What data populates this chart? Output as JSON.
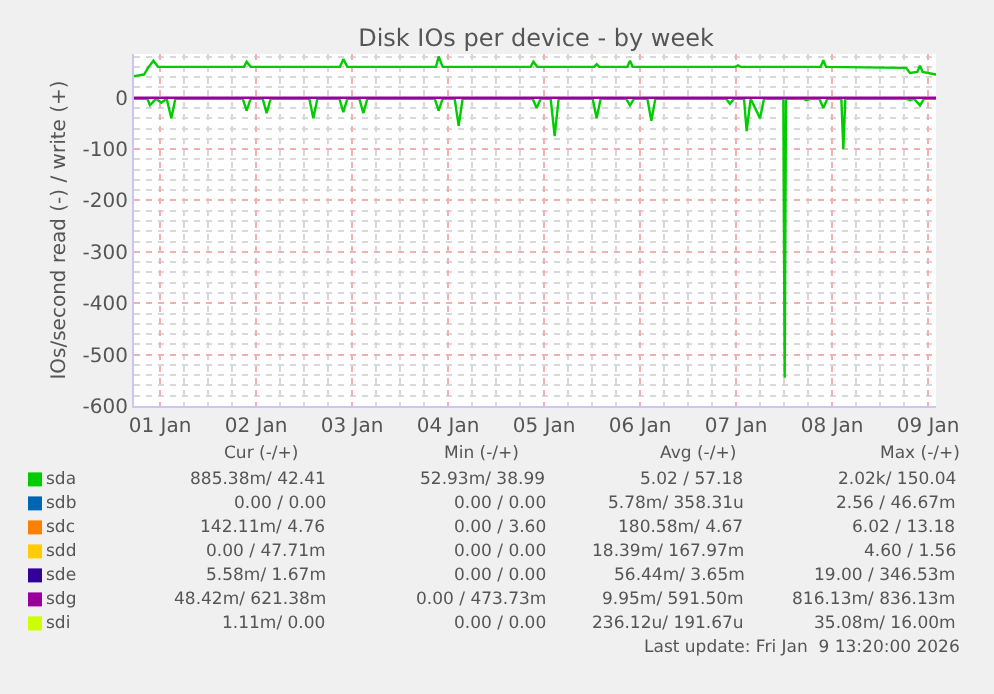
{
  "chart_data": {
    "type": "line",
    "title": "Disk IOs per device - by week",
    "ylabel": "IOs/second read (-) / write (+)",
    "xlim": [
      "2026-01-01T05:30",
      "2026-01-09T14:00"
    ],
    "xticks": [
      {
        "value": "2026-01-01T12:00",
        "label": "01 Jan"
      },
      {
        "value": "2026-01-02T12:00",
        "label": "02 Jan"
      },
      {
        "value": "2026-01-03T12:00",
        "label": "03 Jan"
      },
      {
        "value": "2026-01-04T12:00",
        "label": "04 Jan"
      },
      {
        "value": "2026-01-05T12:00",
        "label": "05 Jan"
      },
      {
        "value": "2026-01-06T12:00",
        "label": "06 Jan"
      },
      {
        "value": "2026-01-07T12:00",
        "label": "07 Jan"
      },
      {
        "value": "2026-01-08T12:00",
        "label": "08 Jan"
      },
      {
        "value": "2026-01-09T12:00",
        "label": "09 Jan"
      }
    ],
    "ylim": [
      -600,
      85
    ],
    "yticks": [
      0,
      -100,
      -200,
      -300,
      -400,
      -500,
      -600
    ],
    "grid": true,
    "legend": "bottom left",
    "marker": "none",
    "line_style": "solid",
    "series": [
      {
        "name": "sda",
        "color": "#00cc00",
        "x": [
          "2026-01-01T05:30",
          "2026-01-01T08:00",
          "2026-01-01T09:00",
          "2026-01-01T10:20",
          "2026-01-01T11:30",
          "2026-01-02T09:00",
          "2026-01-02T09:40",
          "2026-01-02T10:40",
          "2026-01-03T09:00",
          "2026-01-03T09:50",
          "2026-01-03T10:50",
          "2026-01-04T09:00",
          "2026-01-04T09:40",
          "2026-01-04T10:40",
          "2026-01-05T08:40",
          "2026-01-05T09:20",
          "2026-01-05T10:20",
          "2026-01-06T00:30",
          "2026-01-06T01:10",
          "2026-01-06T01:50",
          "2026-01-06T08:50",
          "2026-01-06T09:30",
          "2026-01-06T10:10",
          "2026-01-07T11:50",
          "2026-01-07T12:30",
          "2026-01-07T13:10",
          "2026-01-08T09:10",
          "2026-01-08T09:50",
          "2026-01-08T10:30",
          "2026-01-09T06:30",
          "2026-01-09T07:30",
          "2026-01-09T09:20",
          "2026-01-09T10:00",
          "2026-01-09T10:40",
          "2026-01-09T14:00"
        ],
        "values": [
          42,
          45,
          58,
          72,
          60,
          60,
          70,
          60,
          60,
          75,
          60,
          60,
          80,
          60,
          60,
          70,
          60,
          60,
          65,
          60,
          60,
          72,
          60,
          60,
          63,
          60,
          60,
          73,
          60,
          58,
          48,
          50,
          62,
          50,
          45
        ]
      },
      {
        "color": "#00cc00",
        "x": [
          "2026-01-01T05:30",
          "2026-01-01T08:50",
          "2026-01-01T09:30",
          "2026-01-01T11:00",
          "2026-01-01T12:20",
          "2026-01-01T13:40",
          "2026-01-01T14:50",
          "2026-01-01T15:50",
          "2026-01-02T08:40",
          "2026-01-02T09:40",
          "2026-01-02T10:40",
          "2026-01-02T13:40",
          "2026-01-02T14:40",
          "2026-01-02T15:40",
          "2026-01-03T01:20",
          "2026-01-03T02:20",
          "2026-01-03T03:20",
          "2026-01-03T08:50",
          "2026-01-03T09:50",
          "2026-01-03T10:50",
          "2026-01-03T13:50",
          "2026-01-03T14:50",
          "2026-01-03T15:50",
          "2026-01-04T08:40",
          "2026-01-04T09:40",
          "2026-01-04T10:40",
          "2026-01-04T13:40",
          "2026-01-04T14:40",
          "2026-01-04T15:40",
          "2026-01-05T09:10",
          "2026-01-05T10:10",
          "2026-01-05T11:10",
          "2026-01-05T13:40",
          "2026-01-05T14:40",
          "2026-01-05T15:40",
          "2026-01-06T00:10",
          "2026-01-06T01:10",
          "2026-01-06T02:10",
          "2026-01-06T08:30",
          "2026-01-06T09:30",
          "2026-01-06T10:30",
          "2026-01-06T13:50",
          "2026-01-06T14:50",
          "2026-01-06T15:50",
          "2026-01-07T09:30",
          "2026-01-07T10:30",
          "2026-01-07T11:30",
          "2026-01-07T14:00",
          "2026-01-07T14:40",
          "2026-01-07T15:40",
          "2026-01-07T18:00",
          "2026-01-07T19:00",
          "2026-01-07T23:50",
          "2026-01-08T00:10",
          "2026-01-08T00:30",
          "2026-01-08T04:40",
          "2026-01-08T05:40",
          "2026-01-08T06:40",
          "2026-01-08T08:50",
          "2026-01-08T09:50",
          "2026-01-08T10:50",
          "2026-01-08T14:20",
          "2026-01-08T14:50",
          "2026-01-08T15:20",
          "2026-01-09T06:30",
          "2026-01-09T07:30",
          "2026-01-09T08:30",
          "2026-01-09T10:00",
          "2026-01-09T11:00",
          "2026-01-09T14:00"
        ],
        "values": [
          -2,
          -2,
          -15,
          -2,
          -10,
          -2,
          -40,
          -2,
          -2,
          -25,
          -2,
          -2,
          -30,
          -2,
          -2,
          -40,
          -2,
          -2,
          -28,
          -2,
          -2,
          -30,
          -2,
          -2,
          -25,
          -2,
          -2,
          -55,
          -2,
          -2,
          -20,
          -2,
          -2,
          -75,
          -2,
          -2,
          -40,
          -2,
          -2,
          -15,
          -2,
          -2,
          -45,
          -2,
          -2,
          -12,
          -2,
          -2,
          -65,
          -2,
          -40,
          -2,
          -2,
          -545,
          -2,
          -2,
          -5,
          -2,
          -2,
          -20,
          -2,
          -2,
          -100,
          -2,
          -2,
          -5,
          -2,
          -15,
          -2,
          -2
        ]
      },
      {
        "name": "sdb",
        "color": "#0066b3"
      },
      {
        "name": "sdc",
        "color": "#ff8000"
      },
      {
        "name": "sdd",
        "color": "#ffcc00"
      },
      {
        "name": "sde",
        "color": "#330099"
      },
      {
        "name": "sdg",
        "color": "#990099",
        "x": [
          "2026-01-01T05:30",
          "2026-01-09T14:00"
        ],
        "values": [
          0,
          0
        ]
      },
      {
        "name": "sdi",
        "color": "#ccff00"
      }
    ],
    "annotations": [
      "Cur (-/+)",
      "Min (-/+)",
      "Avg (-/+)",
      "Max (-/+)",
      "885.38m/",
      "42.41",
      "52.93m/",
      "38.99",
      "5.02 /",
      "57.18",
      "2.02k/",
      "150.04",
      "0.00 /",
      "0.00",
      "0.00 /",
      "0.00",
      "5.78m/",
      "358.31u",
      "2.56 /",
      "46.67m",
      "142.11m/",
      "4.76",
      "0.00 /",
      "3.60",
      "180.58m/",
      "4.67",
      "6.02 /",
      "13.18",
      "0.00 /",
      "47.71m",
      "0.00 /",
      "0.00",
      "18.39m/",
      "167.97m",
      "4.60 /",
      "1.56",
      "5.58m/",
      "1.67m",
      "0.00 /",
      "0.00",
      "56.44m/",
      "3.65m",
      "19.00 /",
      "346.53m",
      "48.42m/",
      "621.38m",
      "0.00 /",
      "473.73m",
      "9.95m/",
      "591.50m",
      "816.13m/",
      "836.13m",
      "1.11m/",
      "0.00",
      "0.00 /",
      "0.00",
      "236.12u/",
      "191.67u",
      "35.08m/",
      "16.00m",
      "Last update: Fri Jan  9 13:20:00 2026"
    ]
  }
}
